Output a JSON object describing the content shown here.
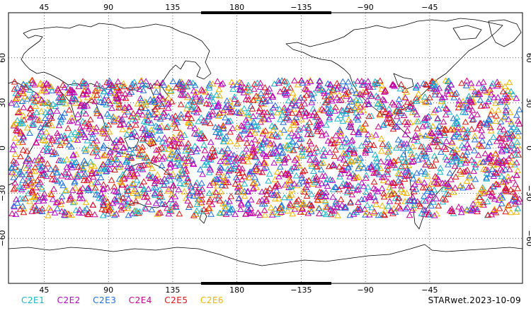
{
  "map": {
    "lon_range": [
      20,
      380
    ],
    "lat_range": [
      -90,
      90
    ],
    "lon_ticks": [
      {
        "lon": 45,
        "label": "45"
      },
      {
        "lon": 90,
        "label": "90"
      },
      {
        "lon": 135,
        "label": "135"
      },
      {
        "lon": 180,
        "label": "180"
      },
      {
        "lon": 225,
        "label": "−135"
      },
      {
        "lon": 270,
        "label": "−90"
      },
      {
        "lon": 315,
        "label": "−45"
      }
    ],
    "lat_ticks": [
      {
        "lat": 60,
        "label": "60"
      },
      {
        "lat": 30,
        "label": "30"
      },
      {
        "lat": 0,
        "label": "0"
      },
      {
        "lat": -30,
        "label": "−30"
      },
      {
        "lat": -60,
        "label": "−60"
      }
    ],
    "grid": "dotted",
    "coastline_color": "#000000"
  },
  "observations": {
    "marker": "open-triangle",
    "lat_band": [
      -45,
      45
    ],
    "count": 3000,
    "series": [
      {
        "name": "C2E1",
        "color": "#19b4c8"
      },
      {
        "name": "C2E2",
        "color": "#b400c8"
      },
      {
        "name": "C2E3",
        "color": "#1e6edc"
      },
      {
        "name": "C2E4",
        "color": "#c8008c"
      },
      {
        "name": "C2E5",
        "color": "#dc1414"
      },
      {
        "name": "C2E6",
        "color": "#f0b400"
      }
    ]
  },
  "stamp": "STARwet.2023-10-09"
}
